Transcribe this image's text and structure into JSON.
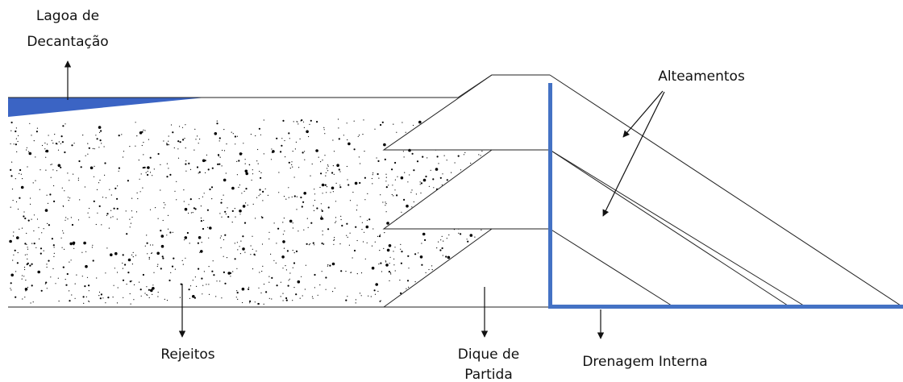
{
  "labels": {
    "lagoa_line1": "Lagoa de",
    "lagoa_line2": "Decantação",
    "alteamentos": "Alteamentos",
    "rejeitos": "Rejeitos",
    "dique_line1": "Dique de",
    "dique_line2": "Partida",
    "drenagem": "Drenagem Interna"
  },
  "colors": {
    "drain": "#4472C4",
    "lagoon": "#3B64C4",
    "line": "#222222",
    "dots": "#000000"
  }
}
